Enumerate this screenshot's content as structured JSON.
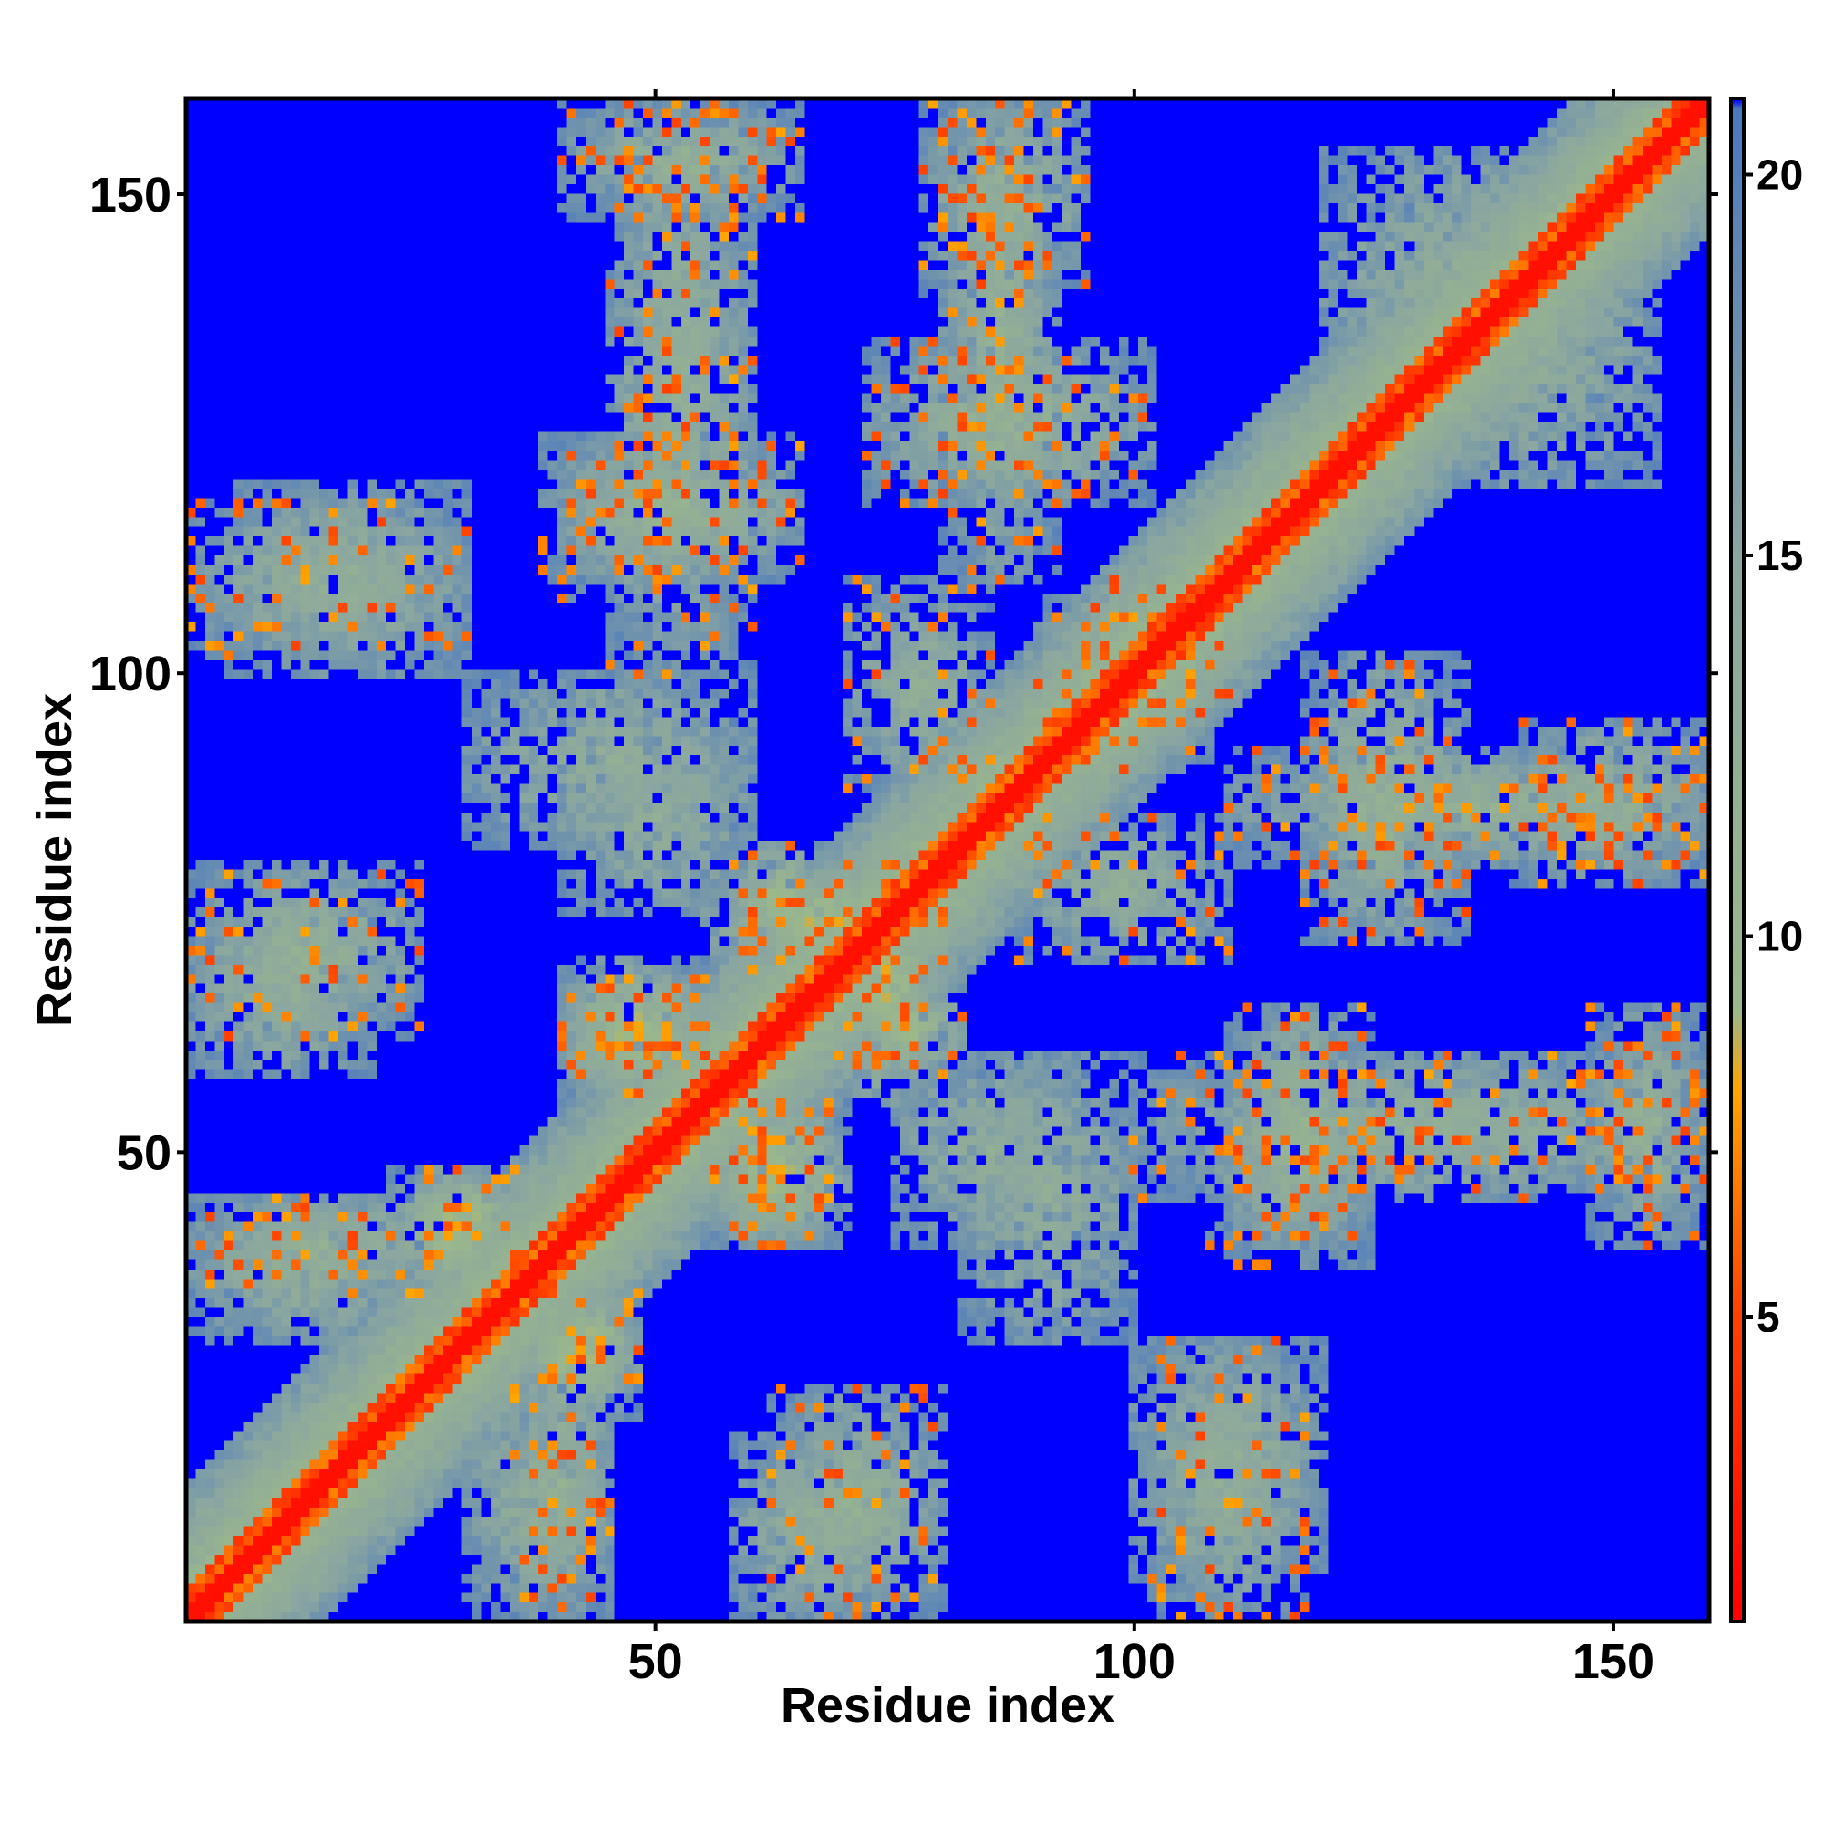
{
  "chart_data": {
    "type": "heatmap",
    "title": "",
    "xlabel": "Residue index",
    "ylabel": "Residue index",
    "xlim": [
      1,
      160
    ],
    "ylim": [
      1,
      160
    ],
    "x_ticks": [
      50,
      100,
      150
    ],
    "y_ticks": [
      50,
      100,
      150
    ],
    "x_tick_labels": [
      "50",
      "100",
      "150"
    ],
    "y_tick_labels": [
      "50",
      "100",
      "150"
    ],
    "n_residues": 160,
    "colorbar": {
      "range": [
        1,
        21
      ],
      "ticks": [
        5,
        10,
        15,
        20
      ],
      "tick_labels": [
        "5",
        "10",
        "15",
        "20"
      ],
      "stops": [
        {
          "value": 1,
          "color": "#ff0000"
        },
        {
          "value": 5,
          "color": "#ff4000"
        },
        {
          "value": 8,
          "color": "#ffa500"
        },
        {
          "value": 9,
          "color": "#9cb98a"
        },
        {
          "value": 15,
          "color": "#8aa6a0"
        },
        {
          "value": 20.9,
          "color": "#4a78c0"
        },
        {
          "value": 21,
          "color": "#0000ff"
        }
      ]
    },
    "diagonal_band": {
      "contact_value": 3,
      "halfwidth_residues": 14
    },
    "contact_regions": [
      {
        "x": [
          1,
          30
        ],
        "y": [
          102,
          118
        ],
        "strength": 0.55
      },
      {
        "x": [
          40,
          65
        ],
        "y": [
          148,
          160
        ],
        "strength": 0.6
      },
      {
        "x": [
          78,
          95
        ],
        "y": [
          140,
          160
        ],
        "strength": 0.6
      },
      {
        "x": [
          38,
          65
        ],
        "y": [
          110,
          125
        ],
        "strength": 0.65
      },
      {
        "x": [
          72,
          102
        ],
        "y": [
          118,
          135
        ],
        "strength": 0.65
      },
      {
        "x": [
          125,
          155
        ],
        "y": [
          120,
          150
        ],
        "strength": 0.5
      },
      {
        "x": [
          55,
          80
        ],
        "y": [
          68,
          80
        ],
        "strength": 0.9
      },
      {
        "x": [
          40,
          55
        ],
        "y": [
          55,
          68
        ],
        "strength": 0.9
      },
      {
        "x": [
          55,
          70
        ],
        "y": [
          40,
          55
        ],
        "strength": 0.9
      },
      {
        "x": [
          70,
          82
        ],
        "y": [
          58,
          68
        ],
        "strength": 0.9
      },
      {
        "x": [
          22,
          35
        ],
        "y": [
          35,
          48
        ],
        "strength": 0.9
      },
      {
        "x": [
          38,
          48
        ],
        "y": [
          25,
          35
        ],
        "strength": 0.9
      },
      {
        "x": [
          1,
          30
        ],
        "y": [
          35,
          45
        ],
        "strength": 0.6
      },
      {
        "x": [
          1,
          25
        ],
        "y": [
          62,
          80
        ],
        "strength": 0.6
      },
      {
        "x": [
          110,
          160
        ],
        "y": [
          80,
          92
        ],
        "strength": 0.6
      },
      {
        "x": [
          100,
          160
        ],
        "y": [
          45,
          60
        ],
        "strength": 0.55
      },
      {
        "x": [
          108,
          125
        ],
        "y": [
          40,
          60
        ],
        "strength": 0.6
      },
      {
        "x": [
          100,
          120
        ],
        "y": [
          5,
          30
        ],
        "strength": 0.5
      },
      {
        "x": [
          58,
          75
        ],
        "y": [
          1,
          20
        ],
        "strength": 0.5
      },
      {
        "x": [
          30,
          45
        ],
        "y": [
          1,
          25
        ],
        "strength": 0.5
      },
      {
        "x": [
          75,
          95
        ],
        "y": [
          40,
          60
        ],
        "strength": 0.45
      },
      {
        "x": [
          88,
          110
        ],
        "y": [
          70,
          85
        ],
        "strength": 0.55
      },
      {
        "x": [
          30,
          60
        ],
        "y": [
          82,
          100
        ],
        "strength": 0.45
      },
      {
        "x": [
          90,
          110
        ],
        "y": [
          95,
          108
        ],
        "strength": 0.7
      }
    ]
  }
}
